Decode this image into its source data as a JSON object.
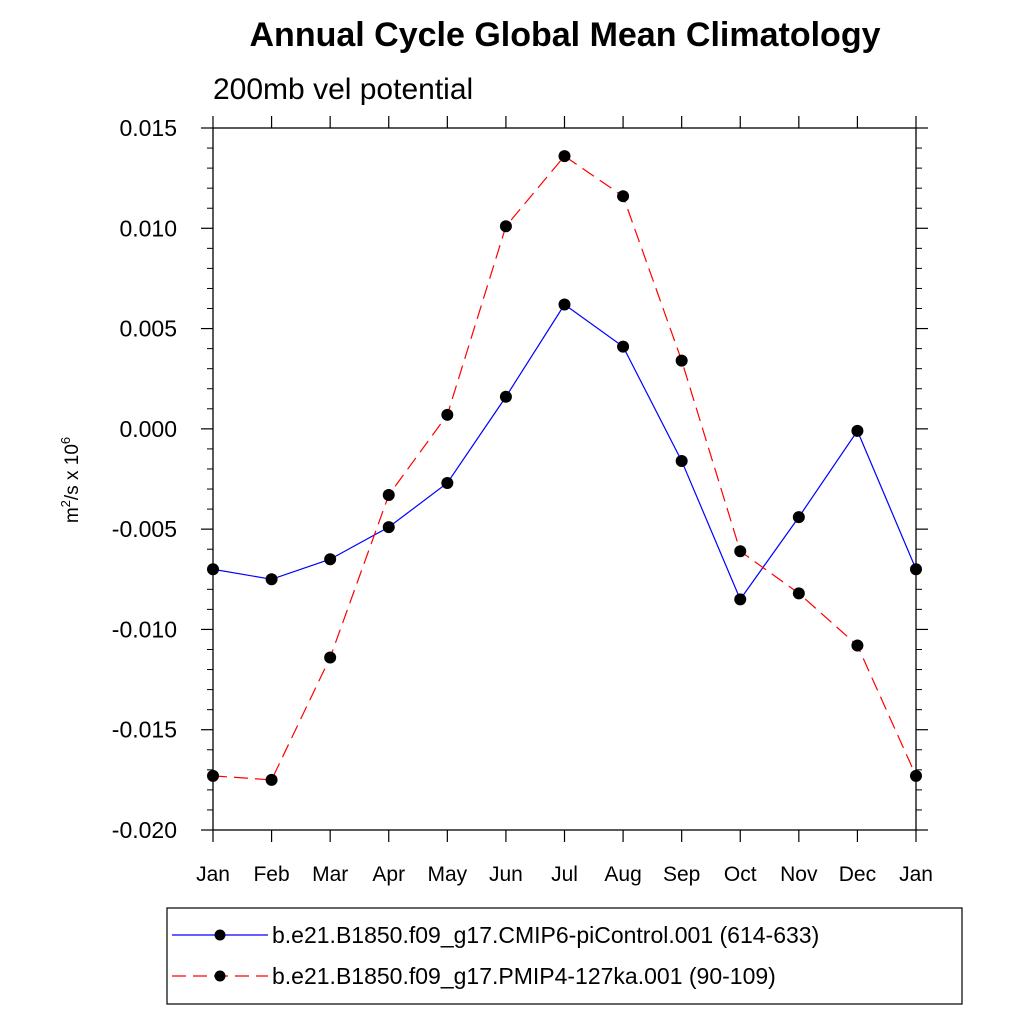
{
  "chart_data": {
    "type": "line",
    "title": "Annual Cycle Global Mean Climatology",
    "subtitle": "200mb vel potential",
    "ylabel": {
      "base": "m",
      "sup1": "2",
      "mid": "/s x 10",
      "sup2": "6"
    },
    "categories": [
      "Jan",
      "Feb",
      "Mar",
      "Apr",
      "May",
      "Jun",
      "Jul",
      "Aug",
      "Sep",
      "Oct",
      "Nov",
      "Dec",
      "Jan"
    ],
    "ylim": [
      -0.02,
      0.015
    ],
    "yticks": [
      "0.015",
      "0.010",
      "0.005",
      "0.000",
      "-0.005",
      "-0.010",
      "-0.015",
      "-0.020"
    ],
    "ytick_values": [
      0.015,
      0.01,
      0.005,
      0.0,
      -0.005,
      -0.01,
      -0.015,
      -0.02
    ],
    "series": [
      {
        "name": "b.e21.B1850.f09_g17.CMIP6-piControl.001 (614-633)",
        "color": "#0000ff",
        "line_style": "solid",
        "values": [
          -0.007,
          -0.0075,
          -0.0065,
          -0.0049,
          -0.0027,
          0.0016,
          0.0062,
          0.0041,
          -0.0016,
          -0.0085,
          -0.0044,
          -0.0001,
          -0.007
        ]
      },
      {
        "name": "b.e21.B1850.f09_g17.PMIP4-127ka.001 (90-109)",
        "color": "#ff0000",
        "line_style": "dashed",
        "values": [
          -0.0173,
          -0.0175,
          -0.0114,
          -0.0033,
          0.0007,
          0.0101,
          0.0136,
          0.0116,
          0.0034,
          -0.0061,
          -0.0082,
          -0.0108,
          -0.0173
        ]
      }
    ],
    "marker": "filled-circle",
    "marker_color": "#000000",
    "grid": false,
    "legend_position": "bottom"
  }
}
